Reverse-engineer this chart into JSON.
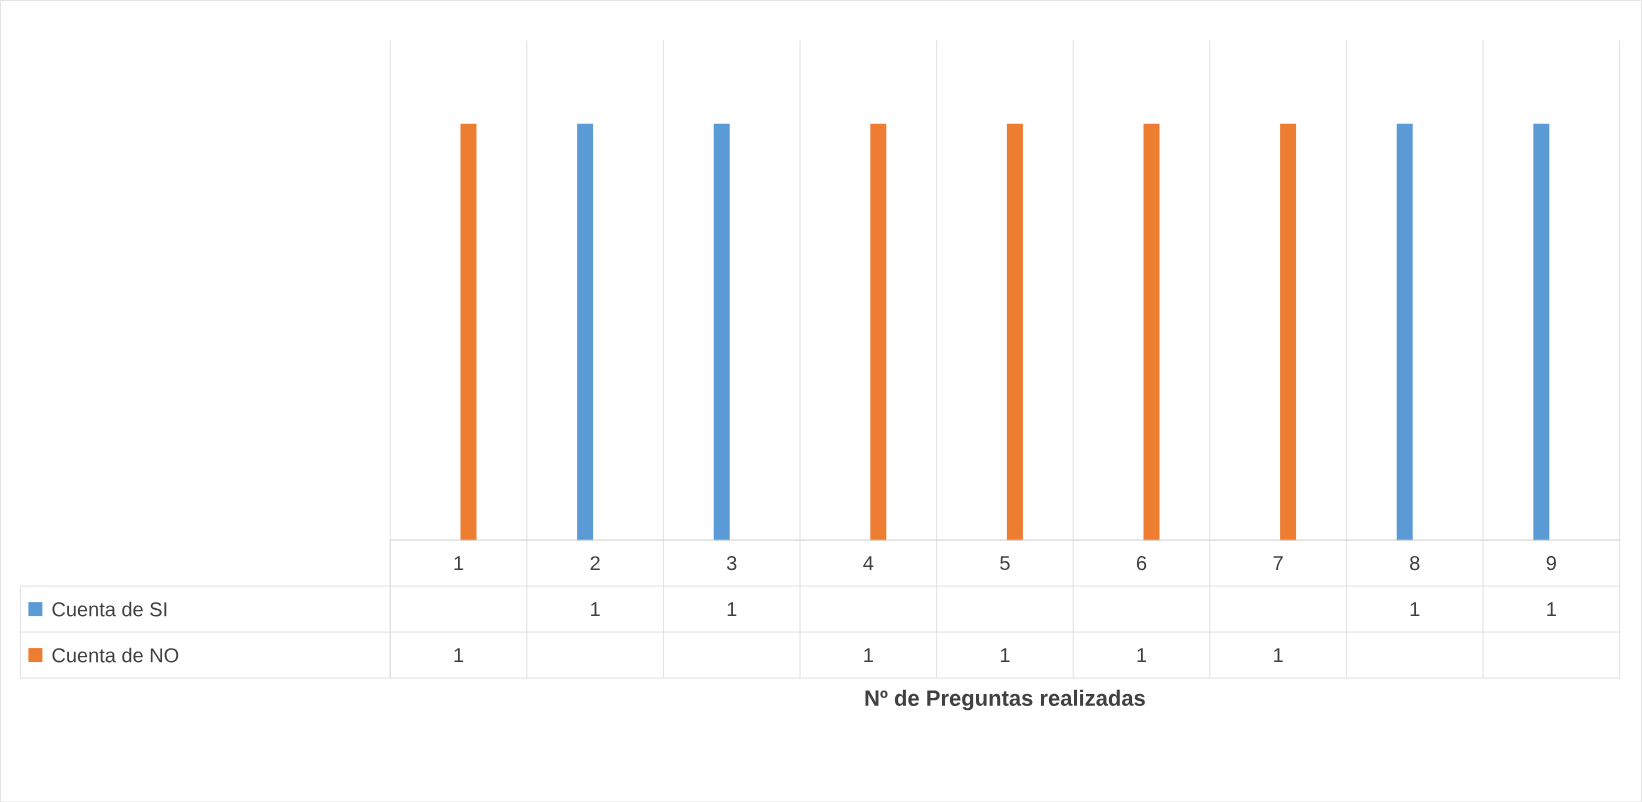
{
  "chart_data": {
    "type": "bar",
    "annotations": [
      "Nº de Preguntas realizadas"
    ],
    "categories": [
      "1",
      "2",
      "3",
      "4",
      "5",
      "6",
      "7",
      "8",
      "9"
    ],
    "series": [
      {
        "name": "Cuenta de  SI",
        "color": "#5b9bd5",
        "values": [
          null,
          1,
          1,
          null,
          null,
          null,
          null,
          1,
          1
        ]
      },
      {
        "name": "Cuenta de NO",
        "color": "#ed7d31",
        "values": [
          1,
          null,
          null,
          1,
          1,
          1,
          1,
          null,
          null
        ]
      }
    ],
    "ylim": [
      0,
      1.2
    ],
    "grid": true,
    "legend": "bottom",
    "data_labels": true
  }
}
